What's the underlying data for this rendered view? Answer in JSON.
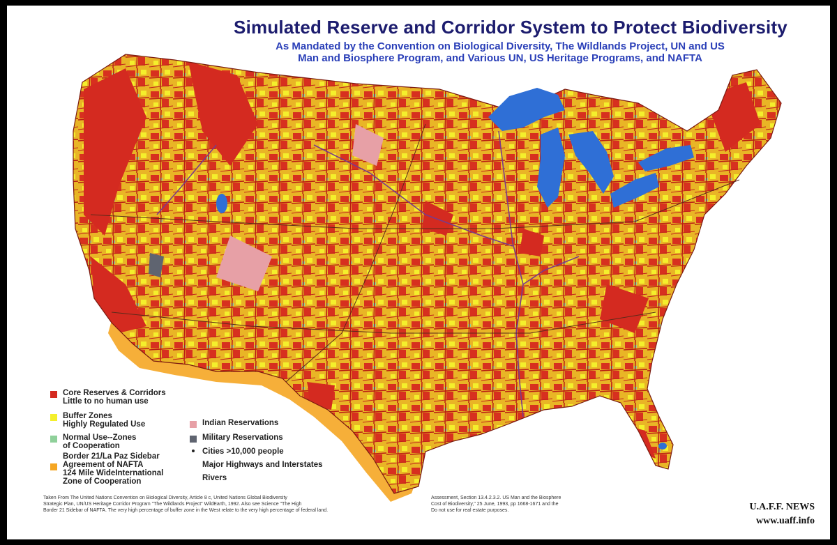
{
  "title": "Simulated Reserve and Corridor System to Protect Biodiversity",
  "subtitle_line1": "As Mandated by the Convention on  Biological Diversity, The Wildlands Project, UN and US",
  "subtitle_line2": "Man and Biosphere Program, and Various UN, US Heritage Programs, and NAFTA",
  "colors": {
    "core": "#d42a20",
    "buffer": "#f2c21e",
    "normal": "#8fd09a",
    "border_zone": "#f5a623",
    "indian": "#e7a0a6",
    "military": "#5f6470",
    "water": "#2f6fd6"
  },
  "legend_left": [
    {
      "label": "Core Reserves & Corridors\nLittle to no human use",
      "color": "#d42a20"
    },
    {
      "label": "Buffer Zones\nHighly Regulated Use",
      "color": "#f4ef2c"
    },
    {
      "label": "Normal Use--Zones\nof Cooperation",
      "color": "#8fd09a"
    },
    {
      "label": "Border 21/La Paz Sidebar\nAgreement of NAFTA\n124 Mile WideInternational\nZone of Cooperation",
      "color": "#f5a623"
    }
  ],
  "legend_right": [
    {
      "label": "Indian Reservations",
      "color": "#e7a0a6",
      "kind": "swatch"
    },
    {
      "label": "Military Reservations",
      "color": "#5f6470",
      "kind": "swatch"
    },
    {
      "label": "Cities >10,000 people",
      "kind": "dot"
    },
    {
      "label": "Major Highways and Interstates",
      "kind": "none"
    },
    {
      "label": "Rivers",
      "kind": "none"
    }
  ],
  "source_left": "Taken From The United Nations Convention on Biological Diversity, Article 8 c, United Nations Global Biodiversity\nStrategic Plan, UN/US Heritage Corridor Program \"The Wildlands Project\" WildEarth, 1992. Also see Science \"The High\nBorder 21 Sidebar of NAFTA. The very high percentage of buffer zone in the West relate to the very high percentage of federal land.",
  "source_right": "Assessment, Section 13.4.2.3.2. US Man and the Biosphere\nCost of Biodiversity,\" 25 June, 1993, pp 1668-1671 and the\nDo not use for real estate purposes.",
  "credit_line1": "U.A.F.F. NEWS",
  "credit_line2": "www.uaff.info"
}
